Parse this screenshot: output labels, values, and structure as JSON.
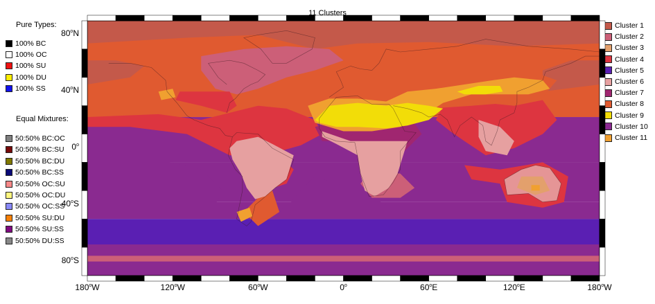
{
  "map": {
    "title": "11 Clusters",
    "lat_labels": [
      {
        "lat": 80,
        "sym": "80",
        "deg": "o",
        "hemi": "N"
      },
      {
        "lat": 40,
        "sym": "40",
        "deg": "o",
        "hemi": "N"
      },
      {
        "lat": 0,
        "sym": "0",
        "deg": "o",
        "hemi": ""
      },
      {
        "lat": -40,
        "sym": "40",
        "deg": "o",
        "hemi": "S"
      },
      {
        "lat": -80,
        "sym": "80",
        "deg": "o",
        "hemi": "S"
      }
    ],
    "lon_labels": [
      {
        "lon": -180,
        "sym": "180",
        "deg": "o",
        "hemi": "W"
      },
      {
        "lon": -120,
        "sym": "120",
        "deg": "o",
        "hemi": "W"
      },
      {
        "lon": -60,
        "sym": "60",
        "deg": "o",
        "hemi": "W"
      },
      {
        "lon": 0,
        "sym": "0",
        "deg": "o",
        "hemi": ""
      },
      {
        "lon": 60,
        "sym": "60",
        "deg": "o",
        "hemi": "E"
      },
      {
        "lon": 120,
        "sym": "120",
        "deg": "o",
        "hemi": "E"
      },
      {
        "lon": 180,
        "sym": "180",
        "deg": "o",
        "hemi": "W"
      }
    ]
  },
  "left_legend": {
    "pure_title": "Pure Types:",
    "pure": [
      {
        "label": "100% BC",
        "color": "#000000"
      },
      {
        "label": "100% OC",
        "color": "#ffffff"
      },
      {
        "label": "100% SU",
        "color": "#ee1111"
      },
      {
        "label": "100% DU",
        "color": "#ffee00"
      },
      {
        "label": "100% SS",
        "color": "#1111ee"
      }
    ],
    "mix_title": "Equal Mixtures:",
    "mix": [
      {
        "label": "50:50% BC:OC",
        "color": "#808080"
      },
      {
        "label": "50:50% BC:SU",
        "color": "#770a0a"
      },
      {
        "label": "50:50% BC:DU",
        "color": "#807800"
      },
      {
        "label": "50:50% BC:SS",
        "color": "#0a0a77"
      },
      {
        "label": "50:50% OC:SU",
        "color": "#f78888"
      },
      {
        "label": "50:50% OC:DU",
        "color": "#fff780"
      },
      {
        "label": "50:50% OC:SS",
        "color": "#8888f7"
      },
      {
        "label": "50:50% SU:DU",
        "color": "#f78008"
      },
      {
        "label": "50:50% SU:SS",
        "color": "#800a80"
      },
      {
        "label": "50:50% DU:SS",
        "color": "#888888"
      }
    ]
  },
  "right_legend": [
    {
      "label": "Cluster 1",
      "color": "#c4594a"
    },
    {
      "label": "Cluster 2",
      "color": "#cc5f78"
    },
    {
      "label": "Cluster 3",
      "color": "#e3a06c"
    },
    {
      "label": "Cluster 4",
      "color": "#dd3540"
    },
    {
      "label": "Cluster 5",
      "color": "#5a1fb3"
    },
    {
      "label": "Cluster 6",
      "color": "#e6a0a0"
    },
    {
      "label": "Cluster 7",
      "color": "#a02670"
    },
    {
      "label": "Cluster 8",
      "color": "#e05a30"
    },
    {
      "label": "Cluster 9",
      "color": "#f2dd08"
    },
    {
      "label": "Cluster 10",
      "color": "#8a2a90"
    },
    {
      "label": "Cluster 11",
      "color": "#f0a030"
    }
  ]
}
